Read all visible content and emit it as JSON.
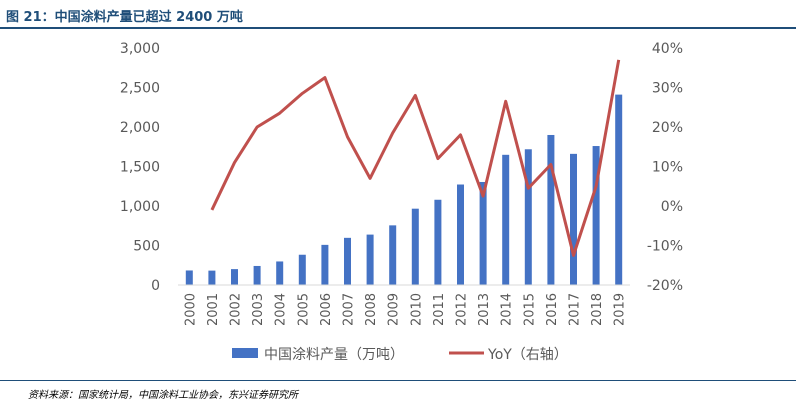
{
  "figure": {
    "title": "图 21：中国涂料产量已超过 2400 万吨",
    "source": "资料来源：国家统计局，中国涂料工业协会，东兴证券研究所"
  },
  "colors": {
    "bar": "#4472C4",
    "line": "#C0504D",
    "axis": "#595959",
    "accent": "#1f4e79"
  },
  "chart_data": {
    "type": "bar+line",
    "categories": [
      "2000",
      "2001",
      "2002",
      "2003",
      "2004",
      "2005",
      "2006",
      "2007",
      "2008",
      "2009",
      "2010",
      "2011",
      "2012",
      "2013",
      "2014",
      "2015",
      "2016",
      "2017",
      "2018",
      "2019"
    ],
    "series": [
      {
        "name": "中国涂料产量（万吨）",
        "type": "bar",
        "axis": "left",
        "values": [
          184,
          182,
          201,
          241,
          298,
          383,
          508,
          597,
          638,
          755,
          966,
          1079,
          1272,
          1304,
          1648,
          1718,
          1899,
          1660,
          1759,
          2410
        ]
      },
      {
        "name": "YoY（右轴）",
        "type": "line",
        "axis": "right",
        "values": [
          null,
          -1.0,
          11.0,
          20.0,
          23.5,
          28.5,
          32.5,
          17.5,
          7.0,
          18.5,
          28.0,
          12.0,
          18.0,
          2.5,
          26.5,
          4.5,
          10.5,
          -12.5,
          5.0,
          37.0
        ]
      }
    ],
    "left_axis": {
      "min": 0,
      "max": 3000,
      "ticks": [
        "0",
        "500",
        "1,000",
        "1,500",
        "2,000",
        "2,500",
        "3,000"
      ]
    },
    "right_axis": {
      "min": -20,
      "max": 40,
      "ticks": [
        "-20%",
        "-10%",
        "0%",
        "10%",
        "20%",
        "30%",
        "40%"
      ]
    },
    "legend": [
      "中国涂料产量（万吨）",
      "YoY（右轴）"
    ],
    "legend_position": "bottom"
  }
}
